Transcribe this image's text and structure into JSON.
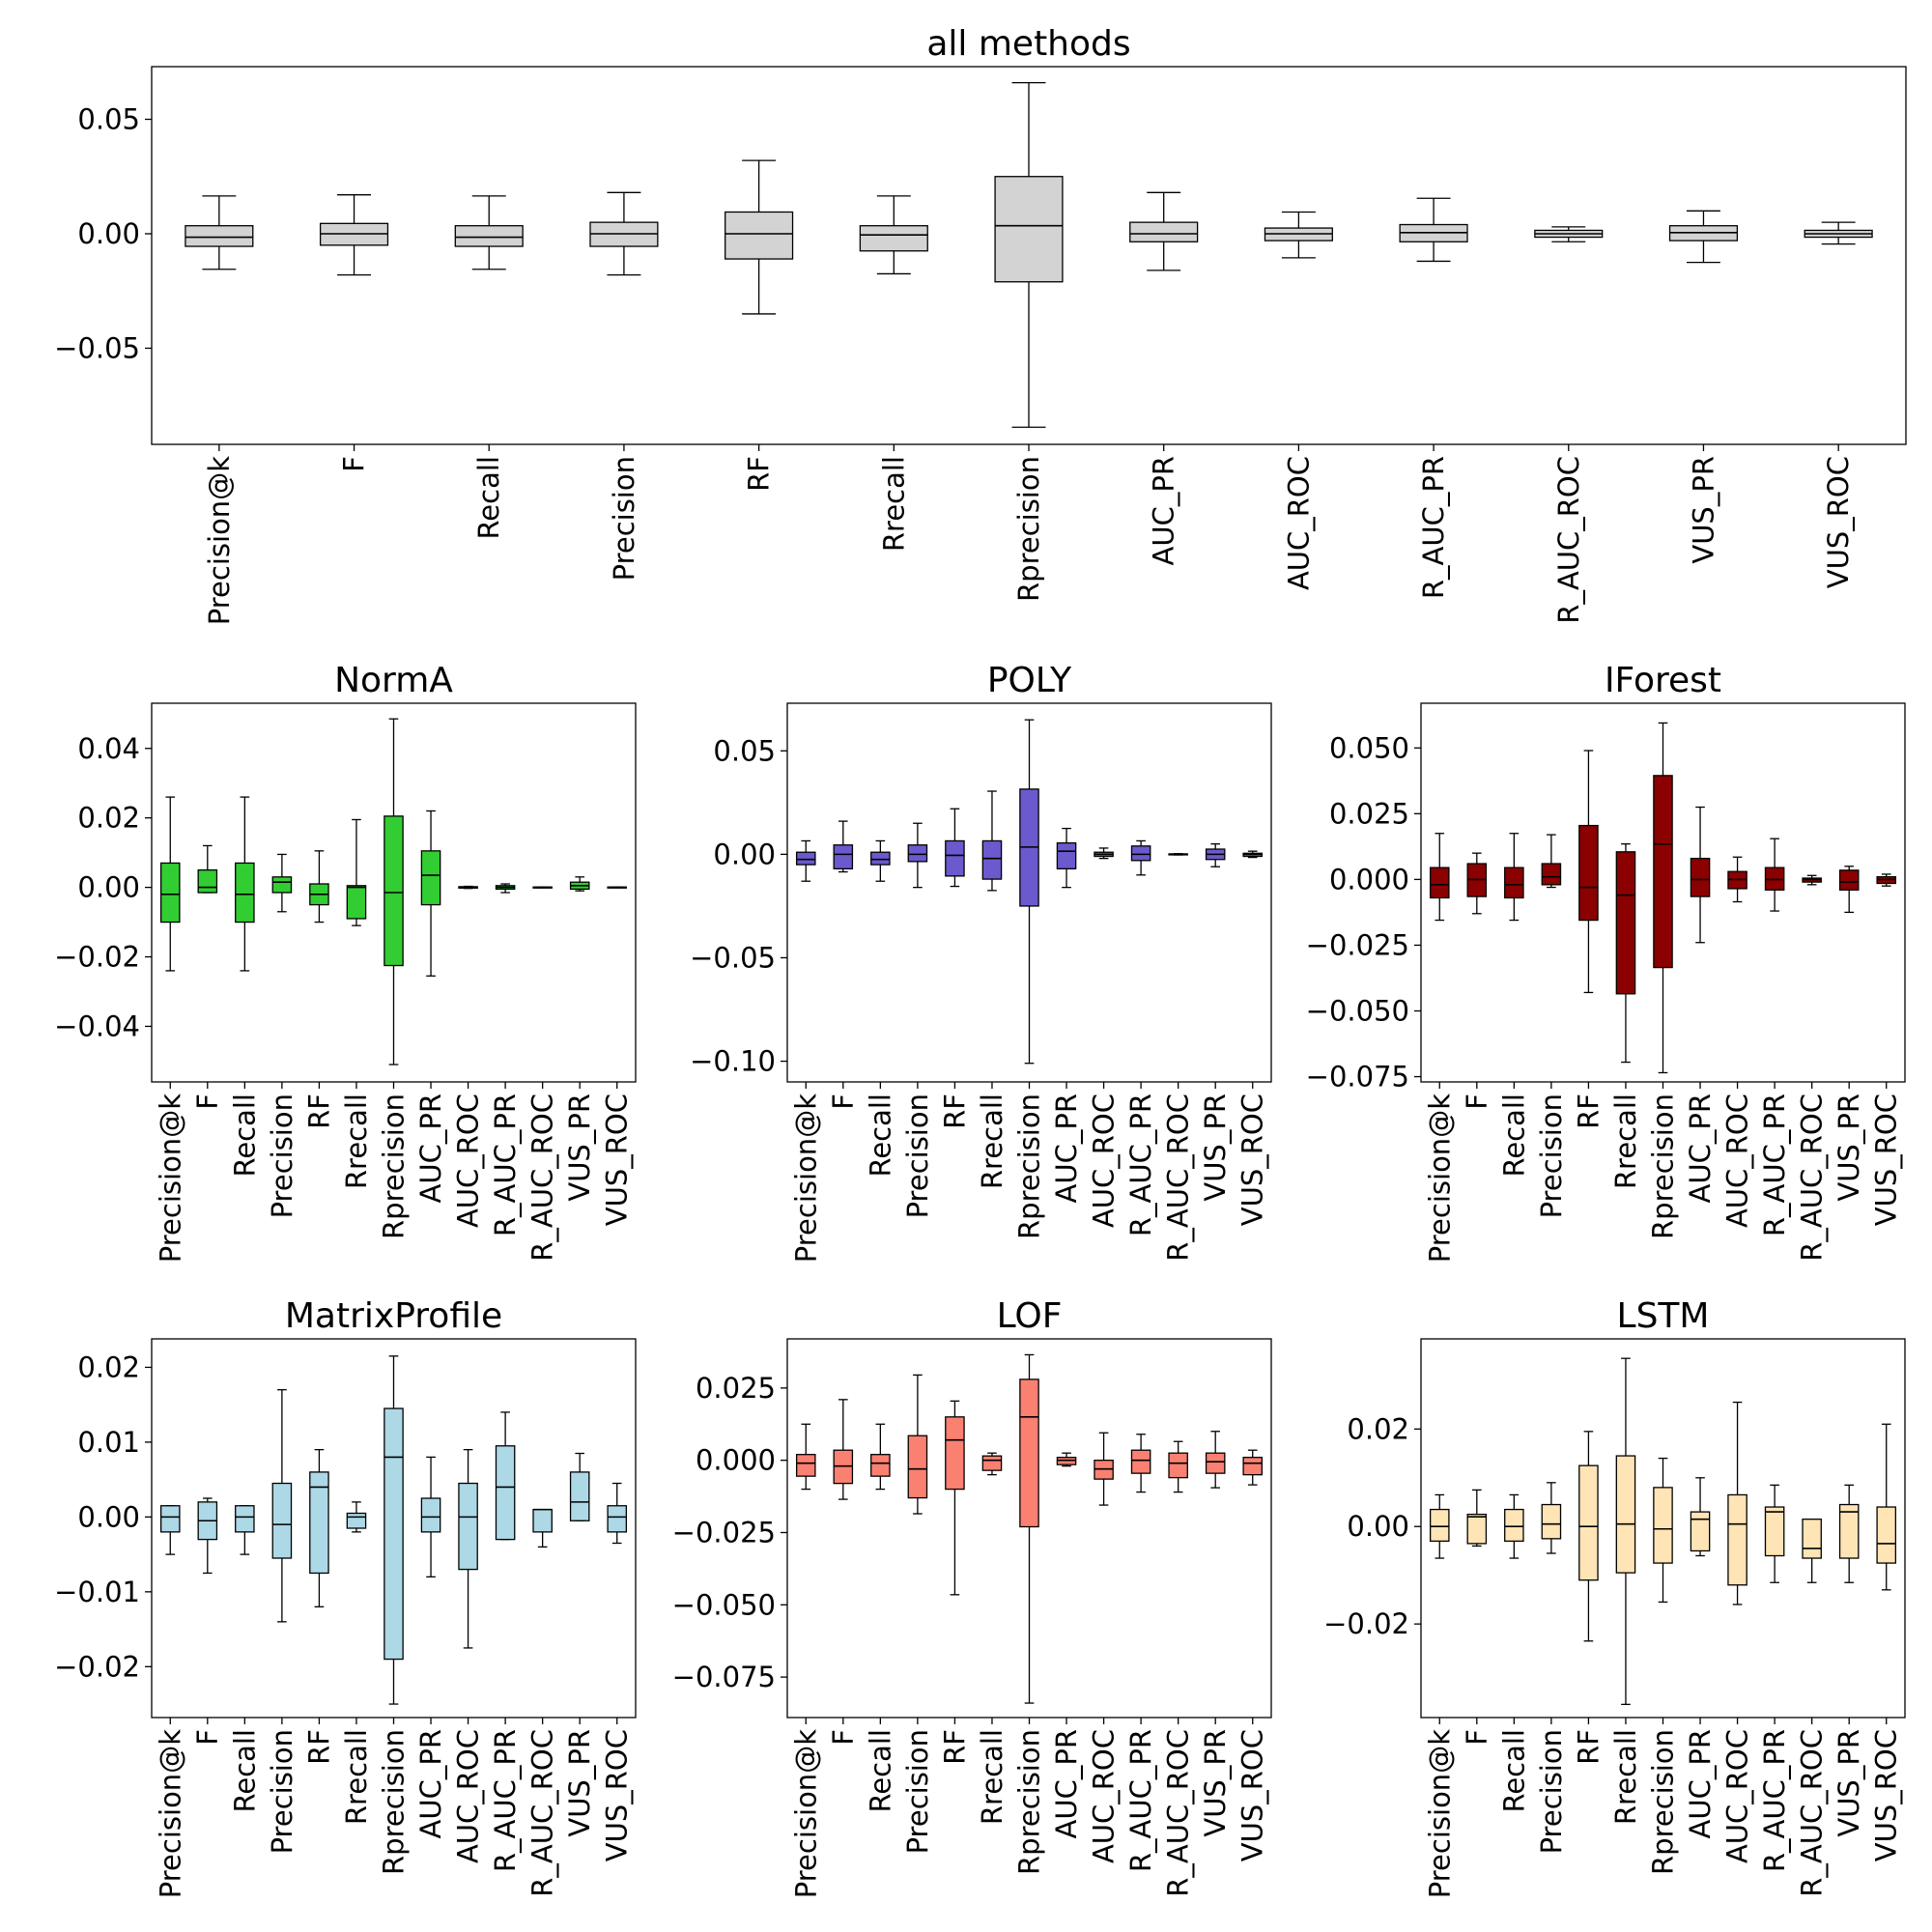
{
  "colors": {
    "all": "#d3d3d3",
    "NormA": "#32cd32",
    "POLY": "#6a5acd",
    "IForest": "#8b0000",
    "MatrixProfile": "#add8e6",
    "LOF": "#fa8072",
    "LSTM": "#ffe4b5"
  },
  "chart_data": [
    {
      "type": "box",
      "title": "all methods",
      "categories": [
        "Precision@k",
        "F",
        "Recall",
        "Precision",
        "RF",
        "Rrecall",
        "Rprecision",
        "AUC_PR",
        "AUC_ROC",
        "R_AUC_PR",
        "R_AUC_ROC",
        "VUS_PR",
        "VUS_ROC"
      ],
      "yticks": [
        -0.05,
        0.0,
        0.05
      ],
      "ytick_labels": [
        "−0.05",
        "0.00",
        "0.05"
      ],
      "ylim": [
        -0.092,
        0.073
      ],
      "boxes": [
        {
          "wl": -0.0155,
          "q1": -0.0055,
          "med": -0.0015,
          "q3": 0.0035,
          "wh": 0.0165
        },
        {
          "wl": -0.018,
          "q1": -0.005,
          "med": 0.0,
          "q3": 0.0045,
          "wh": 0.017
        },
        {
          "wl": -0.0155,
          "q1": -0.0055,
          "med": -0.0015,
          "q3": 0.0035,
          "wh": 0.0165
        },
        {
          "wl": -0.018,
          "q1": -0.0055,
          "med": 0.0,
          "q3": 0.005,
          "wh": 0.018
        },
        {
          "wl": -0.035,
          "q1": -0.011,
          "med": 0.0,
          "q3": 0.0095,
          "wh": 0.032
        },
        {
          "wl": -0.0175,
          "q1": -0.0075,
          "med": -0.0005,
          "q3": 0.0035,
          "wh": 0.0165
        },
        {
          "wl": -0.0845,
          "q1": -0.021,
          "med": 0.0035,
          "q3": 0.025,
          "wh": 0.066
        },
        {
          "wl": -0.016,
          "q1": -0.0035,
          "med": 0.0,
          "q3": 0.005,
          "wh": 0.018
        },
        {
          "wl": -0.0105,
          "q1": -0.003,
          "med": 0.0,
          "q3": 0.0025,
          "wh": 0.0095
        },
        {
          "wl": -0.012,
          "q1": -0.0035,
          "med": 0.0005,
          "q3": 0.004,
          "wh": 0.0155
        },
        {
          "wl": -0.0035,
          "q1": -0.0015,
          "med": 0.0,
          "q3": 0.0015,
          "wh": 0.003
        },
        {
          "wl": -0.0125,
          "q1": -0.003,
          "med": 0.0005,
          "q3": 0.0035,
          "wh": 0.01
        },
        {
          "wl": -0.0045,
          "q1": -0.0015,
          "med": 0.0,
          "q3": 0.0015,
          "wh": 0.005
        }
      ]
    },
    {
      "type": "box",
      "title": "NormA",
      "categories": [
        "Precision@k",
        "F",
        "Recall",
        "Precision",
        "RF",
        "Rrecall",
        "Rprecision",
        "AUC_PR",
        "AUC_ROC",
        "R_AUC_PR",
        "R_AUC_ROC",
        "VUS_PR",
        "VUS_ROC"
      ],
      "yticks": [
        -0.04,
        -0.02,
        0.0,
        0.02,
        0.04
      ],
      "ytick_labels": [
        "−0.04",
        "−0.02",
        "0.00",
        "0.02",
        "0.04"
      ],
      "ylim": [
        -0.056,
        0.053
      ],
      "boxes": [
        {
          "wl": -0.024,
          "q1": -0.01,
          "med": -0.002,
          "q3": 0.007,
          "wh": 0.026
        },
        {
          "wl": -0.0015,
          "q1": -0.0015,
          "med": 0.0,
          "q3": 0.005,
          "wh": 0.012
        },
        {
          "wl": -0.024,
          "q1": -0.01,
          "med": -0.002,
          "q3": 0.007,
          "wh": 0.026
        },
        {
          "wl": -0.007,
          "q1": -0.0015,
          "med": 0.0015,
          "q3": 0.003,
          "wh": 0.0095
        },
        {
          "wl": -0.01,
          "q1": -0.005,
          "med": -0.002,
          "q3": 0.001,
          "wh": 0.0105
        },
        {
          "wl": -0.011,
          "q1": -0.009,
          "med": 0.0,
          "q3": 0.0005,
          "wh": 0.0195
        },
        {
          "wl": -0.051,
          "q1": -0.0225,
          "med": -0.0015,
          "q3": 0.0205,
          "wh": 0.0485
        },
        {
          "wl": -0.0255,
          "q1": -0.005,
          "med": 0.0035,
          "q3": 0.0105,
          "wh": 0.022
        },
        {
          "wl": -0.0003,
          "q1": -0.0002,
          "med": 0.0,
          "q3": 0.0002,
          "wh": 0.0003
        },
        {
          "wl": -0.0015,
          "q1": -0.0005,
          "med": 0.0,
          "q3": 0.0005,
          "wh": 0.001
        },
        {
          "wl": -0.0001,
          "q1": -0.0001,
          "med": 0.0,
          "q3": 0.0001,
          "wh": 0.0001
        },
        {
          "wl": -0.001,
          "q1": -0.0005,
          "med": 0.0005,
          "q3": 0.0015,
          "wh": 0.003
        },
        {
          "wl": -0.0001,
          "q1": -0.0001,
          "med": 0.0,
          "q3": 0.0001,
          "wh": 0.0001
        }
      ]
    },
    {
      "type": "box",
      "title": "POLY",
      "categories": [
        "Precision@k",
        "F",
        "Recall",
        "Precision",
        "RF",
        "Rrecall",
        "Rprecision",
        "AUC_PR",
        "AUC_ROC",
        "R_AUC_PR",
        "R_AUC_ROC",
        "VUS_PR",
        "VUS_ROC"
      ],
      "yticks": [
        -0.1,
        -0.05,
        0.0,
        0.05
      ],
      "ytick_labels": [
        "−0.10",
        "−0.05",
        "0.00",
        "0.05"
      ],
      "ylim": [
        -0.11,
        0.073
      ],
      "boxes": [
        {
          "wl": -0.013,
          "q1": -0.005,
          "med": -0.0025,
          "q3": 0.001,
          "wh": 0.0065
        },
        {
          "wl": -0.0085,
          "q1": -0.007,
          "med": 0.0,
          "q3": 0.0045,
          "wh": 0.016
        },
        {
          "wl": -0.013,
          "q1": -0.005,
          "med": -0.0025,
          "q3": 0.001,
          "wh": 0.0065
        },
        {
          "wl": -0.016,
          "q1": -0.0035,
          "med": 0.0,
          "q3": 0.0045,
          "wh": 0.015
        },
        {
          "wl": -0.0155,
          "q1": -0.0105,
          "med": -0.0005,
          "q3": 0.0065,
          "wh": 0.022
        },
        {
          "wl": -0.0175,
          "q1": -0.012,
          "med": -0.002,
          "q3": 0.0065,
          "wh": 0.0305
        },
        {
          "wl": -0.101,
          "q1": -0.025,
          "med": 0.0035,
          "q3": 0.0315,
          "wh": 0.065
        },
        {
          "wl": -0.016,
          "q1": -0.007,
          "med": 0.0015,
          "q3": 0.0055,
          "wh": 0.0125
        },
        {
          "wl": -0.002,
          "q1": -0.001,
          "med": 0.0,
          "q3": 0.001,
          "wh": 0.003
        },
        {
          "wl": -0.01,
          "q1": -0.003,
          "med": 0.0,
          "q3": 0.004,
          "wh": 0.0065
        },
        {
          "wl": -0.0003,
          "q1": -0.0002,
          "med": 0.0,
          "q3": 0.0002,
          "wh": 0.0003
        },
        {
          "wl": -0.006,
          "q1": -0.0025,
          "med": 0.0,
          "q3": 0.0025,
          "wh": 0.005
        },
        {
          "wl": -0.0015,
          "q1": -0.001,
          "med": 0.0,
          "q3": 0.0005,
          "wh": 0.0015
        }
      ]
    },
    {
      "type": "box",
      "title": "IForest",
      "categories": [
        "Precision@k",
        "F",
        "Recall",
        "Precision",
        "RF",
        "Rrecall",
        "Rprecision",
        "AUC_PR",
        "AUC_ROC",
        "R_AUC_PR",
        "R_AUC_ROC",
        "VUS_PR",
        "VUS_ROC"
      ],
      "yticks": [
        -0.075,
        -0.05,
        -0.025,
        0.0,
        0.025,
        0.05
      ],
      "ytick_labels": [
        "−0.075",
        "−0.050",
        "−0.025",
        "0.000",
        "0.025",
        "0.050"
      ],
      "ylim": [
        -0.077,
        0.067
      ],
      "boxes": [
        {
          "wl": -0.0155,
          "q1": -0.007,
          "med": -0.002,
          "q3": 0.0045,
          "wh": 0.0175
        },
        {
          "wl": -0.013,
          "q1": -0.0065,
          "med": 0.0,
          "q3": 0.006,
          "wh": 0.01
        },
        {
          "wl": -0.0155,
          "q1": -0.007,
          "med": -0.002,
          "q3": 0.0045,
          "wh": 0.0175
        },
        {
          "wl": -0.003,
          "q1": -0.002,
          "med": 0.001,
          "q3": 0.006,
          "wh": 0.017
        },
        {
          "wl": -0.043,
          "q1": -0.0155,
          "med": -0.003,
          "q3": 0.0205,
          "wh": 0.049
        },
        {
          "wl": -0.0695,
          "q1": -0.0435,
          "med": -0.006,
          "q3": 0.0105,
          "wh": 0.0135
        },
        {
          "wl": -0.0735,
          "q1": -0.0335,
          "med": 0.0135,
          "q3": 0.0395,
          "wh": 0.0595
        },
        {
          "wl": -0.024,
          "q1": -0.0065,
          "med": 0.0,
          "q3": 0.008,
          "wh": 0.0275
        },
        {
          "wl": -0.0085,
          "q1": -0.0035,
          "med": 0.0,
          "q3": 0.003,
          "wh": 0.0085
        },
        {
          "wl": -0.012,
          "q1": -0.004,
          "med": 0.0,
          "q3": 0.0045,
          "wh": 0.0155
        },
        {
          "wl": -0.002,
          "q1": -0.001,
          "med": 0.0,
          "q3": 0.0005,
          "wh": 0.0015
        },
        {
          "wl": -0.0125,
          "q1": -0.004,
          "med": -0.001,
          "q3": 0.0035,
          "wh": 0.005
        },
        {
          "wl": -0.0025,
          "q1": -0.0015,
          "med": 0.0,
          "q3": 0.001,
          "wh": 0.002
        }
      ]
    },
    {
      "type": "box",
      "title": "MatrixProfile",
      "categories": [
        "Precision@k",
        "F",
        "Recall",
        "Precision",
        "RF",
        "Rrecall",
        "Rprecision",
        "AUC_PR",
        "AUC_ROC",
        "R_AUC_PR",
        "R_AUC_ROC",
        "VUS_PR",
        "VUS_ROC"
      ],
      "yticks": [
        -0.02,
        -0.01,
        0.0,
        0.01,
        0.02
      ],
      "ytick_labels": [
        "−0.02",
        "−0.01",
        "0.00",
        "0.01",
        "0.02"
      ],
      "ylim": [
        -0.0268,
        0.0238
      ],
      "boxes": [
        {
          "wl": -0.005,
          "q1": -0.002,
          "med": 0.0,
          "q3": 0.0015,
          "wh": 0.0015
        },
        {
          "wl": -0.0075,
          "q1": -0.003,
          "med": -0.0005,
          "q3": 0.002,
          "wh": 0.0025
        },
        {
          "wl": -0.005,
          "q1": -0.002,
          "med": 0.0,
          "q3": 0.0015,
          "wh": 0.0015
        },
        {
          "wl": -0.014,
          "q1": -0.0055,
          "med": -0.001,
          "q3": 0.0045,
          "wh": 0.017
        },
        {
          "wl": -0.012,
          "q1": -0.0075,
          "med": 0.004,
          "q3": 0.006,
          "wh": 0.009
        },
        {
          "wl": -0.002,
          "q1": -0.0015,
          "med": 0.0,
          "q3": 0.0005,
          "wh": 0.002
        },
        {
          "wl": -0.025,
          "q1": -0.019,
          "med": 0.008,
          "q3": 0.0145,
          "wh": 0.0215
        },
        {
          "wl": -0.008,
          "q1": -0.002,
          "med": 0.0,
          "q3": 0.0025,
          "wh": 0.008
        },
        {
          "wl": -0.0175,
          "q1": -0.007,
          "med": 0.0,
          "q3": 0.0045,
          "wh": 0.009
        },
        {
          "wl": -0.003,
          "q1": -0.003,
          "med": 0.004,
          "q3": 0.0095,
          "wh": 0.014
        },
        {
          "wl": -0.004,
          "q1": -0.002,
          "med": 0.001,
          "q3": 0.001,
          "wh": 0.001
        },
        {
          "wl": -0.0005,
          "q1": -0.0005,
          "med": 0.002,
          "q3": 0.006,
          "wh": 0.0085
        },
        {
          "wl": -0.0035,
          "q1": -0.002,
          "med": 0.0,
          "q3": 0.0015,
          "wh": 0.0045
        }
      ]
    },
    {
      "type": "box",
      "title": "LOF",
      "categories": [
        "Precision@k",
        "F",
        "Recall",
        "Precision",
        "RF",
        "Rrecall",
        "Rprecision",
        "AUC_PR",
        "AUC_ROC",
        "R_AUC_PR",
        "R_AUC_ROC",
        "VUS_PR",
        "VUS_ROC"
      ],
      "yticks": [
        -0.075,
        -0.05,
        -0.025,
        0.0,
        0.025
      ],
      "ytick_labels": [
        "−0.075",
        "−0.050",
        "−0.025",
        "0.000",
        "0.025"
      ],
      "ylim": [
        -0.089,
        0.042
      ],
      "boxes": [
        {
          "wl": -0.01,
          "q1": -0.0055,
          "med": -0.001,
          "q3": 0.002,
          "wh": 0.0125
        },
        {
          "wl": -0.0135,
          "q1": -0.008,
          "med": -0.002,
          "q3": 0.0035,
          "wh": 0.021
        },
        {
          "wl": -0.01,
          "q1": -0.0055,
          "med": -0.001,
          "q3": 0.002,
          "wh": 0.0125
        },
        {
          "wl": -0.0185,
          "q1": -0.013,
          "med": -0.003,
          "q3": 0.0085,
          "wh": 0.0295
        },
        {
          "wl": -0.0465,
          "q1": -0.01,
          "med": 0.007,
          "q3": 0.015,
          "wh": 0.0205
        },
        {
          "wl": -0.005,
          "q1": -0.0035,
          "med": 0.0,
          "q3": 0.0015,
          "wh": 0.0025
        },
        {
          "wl": -0.084,
          "q1": -0.023,
          "med": 0.015,
          "q3": 0.028,
          "wh": 0.0365
        },
        {
          "wl": -0.002,
          "q1": -0.0015,
          "med": 0.0,
          "q3": 0.001,
          "wh": 0.0025
        },
        {
          "wl": -0.0155,
          "q1": -0.0065,
          "med": -0.003,
          "q3": 0.0,
          "wh": 0.0095
        },
        {
          "wl": -0.011,
          "q1": -0.0045,
          "med": 0.0,
          "q3": 0.0035,
          "wh": 0.009
        },
        {
          "wl": -0.011,
          "q1": -0.006,
          "med": -0.001,
          "q3": 0.0025,
          "wh": 0.0065
        },
        {
          "wl": -0.0095,
          "q1": -0.0045,
          "med": -0.0005,
          "q3": 0.0025,
          "wh": 0.01
        },
        {
          "wl": -0.0085,
          "q1": -0.005,
          "med": -0.001,
          "q3": 0.001,
          "wh": 0.0035
        }
      ]
    },
    {
      "type": "box",
      "title": "LSTM",
      "categories": [
        "Precision@k",
        "F",
        "Recall",
        "Precision",
        "RF",
        "Rrecall",
        "Rprecision",
        "AUC_PR",
        "AUC_ROC",
        "R_AUC_PR",
        "R_AUC_ROC",
        "VUS_PR",
        "VUS_ROC"
      ],
      "yticks": [
        -0.02,
        0.0,
        0.02
      ],
      "ytick_labels": [
        "−0.02",
        "0.00",
        "0.02"
      ],
      "ylim": [
        -0.0392,
        0.0385
      ],
      "boxes": [
        {
          "wl": -0.0065,
          "q1": -0.003,
          "med": 0.0,
          "q3": 0.0035,
          "wh": 0.0065
        },
        {
          "wl": -0.004,
          "q1": -0.0035,
          "med": 0.002,
          "q3": 0.0025,
          "wh": 0.0075
        },
        {
          "wl": -0.0065,
          "q1": -0.003,
          "med": 0.0,
          "q3": 0.0035,
          "wh": 0.0065
        },
        {
          "wl": -0.0055,
          "q1": -0.0025,
          "med": 0.0005,
          "q3": 0.0045,
          "wh": 0.009
        },
        {
          "wl": -0.0235,
          "q1": -0.011,
          "med": 0.0,
          "q3": 0.0125,
          "wh": 0.0195
        },
        {
          "wl": -0.0365,
          "q1": -0.0095,
          "med": 0.0005,
          "q3": 0.0145,
          "wh": 0.0345
        },
        {
          "wl": -0.0155,
          "q1": -0.0075,
          "med": -0.0005,
          "q3": 0.008,
          "wh": 0.014
        },
        {
          "wl": -0.006,
          "q1": -0.005,
          "med": 0.0015,
          "q3": 0.003,
          "wh": 0.01
        },
        {
          "wl": -0.016,
          "q1": -0.012,
          "med": 0.0005,
          "q3": 0.0065,
          "wh": 0.0255
        },
        {
          "wl": -0.0115,
          "q1": -0.006,
          "med": 0.003,
          "q3": 0.004,
          "wh": 0.0085
        },
        {
          "wl": -0.0115,
          "q1": -0.0065,
          "med": -0.0045,
          "q3": 0.0015,
          "wh": 0.0015
        },
        {
          "wl": -0.0115,
          "q1": -0.0065,
          "med": 0.003,
          "q3": 0.0045,
          "wh": 0.0085
        },
        {
          "wl": -0.013,
          "q1": -0.0075,
          "med": -0.0035,
          "q3": 0.004,
          "wh": 0.021
        }
      ]
    }
  ]
}
